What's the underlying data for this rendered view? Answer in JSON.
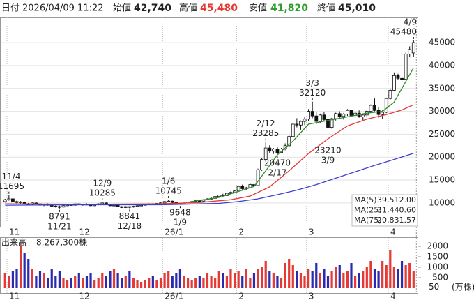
{
  "header": {
    "date_label": "日付",
    "date": "2026/04/09 11:22",
    "open_label": "始値",
    "open": "42,740",
    "high_label": "高値",
    "high": "45,480",
    "high_color": "#e53935",
    "low_label": "安値",
    "low": "41,820",
    "low_color": "#2e9e2e",
    "close_label": "終値",
    "close": "45,010"
  },
  "chart_data": [
    {
      "type": "candlestick",
      "open": [
        10300,
        10700,
        10900,
        10300,
        10100,
        10200,
        9800,
        9700,
        10000,
        9800,
        9500,
        9700,
        9500,
        9300,
        9200,
        9100,
        9400,
        9600,
        9500,
        9800,
        9600,
        9700,
        9600,
        9400,
        9600,
        9800,
        10000,
        9700,
        9400,
        9500,
        9200,
        9000,
        9200,
        9100,
        9300,
        9400,
        9500,
        9700,
        9800,
        9700,
        9900,
        10000,
        10300,
        10400,
        10100,
        9900,
        9800,
        10000,
        10200,
        10300,
        10500,
        10400,
        10700,
        10900,
        11000,
        11400,
        11700,
        11600,
        12100,
        12300,
        12600,
        13600,
        13100,
        13300,
        14000,
        13800,
        17200,
        19500,
        22000,
        21300,
        21800,
        21000,
        21800,
        22500,
        24500,
        27200,
        27000,
        27800,
        28300,
        30000,
        29000,
        27800,
        29200,
        28200,
        26500,
        28400,
        29500,
        28900,
        29400,
        30200,
        29100,
        29600,
        28800,
        29200,
        30000,
        31300,
        30200,
        29300,
        29800,
        32800,
        34600,
        37800,
        37200,
        37000,
        42500,
        42740
      ],
      "high": [
        10900,
        11695,
        11000,
        10500,
        10400,
        10300,
        10000,
        10100,
        10200,
        9900,
        9800,
        9900,
        9600,
        9500,
        9400,
        9500,
        9700,
        9800,
        9900,
        10000,
        9800,
        9900,
        9800,
        9700,
        9900,
        10285,
        10100,
        9800,
        9600,
        9600,
        9300,
        9300,
        9300,
        9400,
        9500,
        9600,
        9800,
        9900,
        10000,
        9900,
        10100,
        10400,
        10745,
        10500,
        10200,
        10000,
        10100,
        10300,
        10400,
        10600,
        10700,
        10800,
        11000,
        11200,
        11500,
        11800,
        12000,
        12200,
        12500,
        12800,
        13800,
        14000,
        13500,
        14200,
        14500,
        17500,
        19800,
        23285,
        22600,
        22000,
        22200,
        22000,
        23000,
        24800,
        27500,
        28500,
        28000,
        28800,
        30500,
        32120,
        29800,
        29500,
        29800,
        28300,
        28600,
        29700,
        30000,
        29600,
        30500,
        30400,
        29800,
        30200,
        29500,
        30300,
        31500,
        32800,
        31000,
        30200,
        33000,
        35000,
        38500,
        38200,
        37600,
        42800,
        44200,
        45480
      ],
      "low": [
        10100,
        10500,
        10200,
        9900,
        9800,
        9700,
        9500,
        9600,
        9700,
        9400,
        9300,
        9400,
        9100,
        9000,
        8791,
        9000,
        9300,
        9400,
        9400,
        9500,
        9400,
        9500,
        9300,
        9300,
        9500,
        9700,
        9600,
        9300,
        9200,
        9100,
        8900,
        8900,
        8841,
        9000,
        9200,
        9300,
        9400,
        9600,
        9600,
        9600,
        9800,
        9900,
        10200,
        10000,
        9800,
        9648,
        9700,
        9900,
        10000,
        10200,
        10300,
        10300,
        10600,
        10700,
        10900,
        11300,
        11500,
        11500,
        11900,
        12100,
        12500,
        12900,
        12800,
        13200,
        13600,
        13700,
        17000,
        19000,
        20800,
        20700,
        20470,
        20800,
        21500,
        22300,
        24300,
        26500,
        26000,
        27000,
        27800,
        28500,
        27200,
        27500,
        27800,
        23210,
        26200,
        28000,
        28600,
        28200,
        29000,
        28800,
        28500,
        28600,
        27800,
        28700,
        29700,
        30000,
        28600,
        28400,
        29600,
        32500,
        34400,
        36800,
        36300,
        36800,
        41800,
        41820
      ],
      "close": [
        10700,
        10900,
        10300,
        10100,
        10200,
        9800,
        9700,
        10000,
        9800,
        9500,
        9700,
        9500,
        9300,
        9200,
        9100,
        9400,
        9600,
        9500,
        9800,
        9600,
        9700,
        9600,
        9400,
        9600,
        9800,
        10000,
        9700,
        9400,
        9500,
        9200,
        9000,
        9200,
        9100,
        9300,
        9400,
        9500,
        9700,
        9800,
        9700,
        9900,
        10000,
        10300,
        10400,
        10100,
        9900,
        9800,
        10000,
        10200,
        10300,
        10500,
        10400,
        10700,
        10900,
        11000,
        11400,
        11700,
        11600,
        12100,
        12300,
        12600,
        13600,
        13100,
        13300,
        14000,
        13800,
        17200,
        19500,
        22000,
        21300,
        21800,
        21000,
        21800,
        22500,
        24500,
        27200,
        27000,
        27800,
        28300,
        30000,
        29000,
        27800,
        29200,
        28200,
        26500,
        28400,
        29500,
        28900,
        29400,
        30200,
        29100,
        29600,
        28800,
        29200,
        30000,
        31300,
        30200,
        29300,
        29800,
        32800,
        34600,
        37800,
        37200,
        37000,
        42500,
        43500,
        45010
      ],
      "up_color": "#ffffff",
      "down_color": "#111111",
      "xlim": [
        -1.3,
        106.2
      ],
      "xticks": [
        {
          "value": 0.5,
          "label": "11"
        },
        {
          "value": 18.5,
          "label": "12"
        },
        {
          "value": 40.5,
          "label": "26/1"
        },
        {
          "value": 59.5,
          "label": "2"
        },
        {
          "value": 77.5,
          "label": "3"
        },
        {
          "value": 98.5,
          "label": "4"
        }
      ],
      "ylim": [
        4800,
        50500
      ],
      "yticks": [
        10000,
        15000,
        20000,
        25000,
        30000,
        35000,
        40000,
        45000
      ],
      "grid": true,
      "legend": "bottom-right",
      "lines": [
        {
          "name": "MA(5)",
          "color": "#2e8b2e",
          "x": [
            48,
            55,
            60,
            64,
            67,
            70,
            74,
            78,
            83,
            88,
            93,
            97,
            100,
            103,
            105
          ],
          "values": [
            10300,
            11200,
            12500,
            13600,
            17000,
            20500,
            23500,
            27200,
            28000,
            28800,
            29600,
            30000,
            32000,
            36500,
            39512
          ],
          "legend_value_label": "39,512.00"
        },
        {
          "name": "MA(25)",
          "color": "#e53935",
          "x": [
            0,
            20,
            40,
            50,
            58,
            63,
            68,
            73,
            78,
            83,
            88,
            93,
            98,
            102,
            105
          ],
          "values": [
            9800,
            9700,
            9800,
            10100,
            10700,
            11500,
            13500,
            17000,
            20800,
            24000,
            26800,
            28300,
            29300,
            30300,
            31440.6
          ],
          "legend_value_label": "31,440.60"
        },
        {
          "name": "MA(75)",
          "color": "#3f3fd0",
          "x": [
            0,
            20,
            40,
            55,
            60,
            65,
            70,
            75,
            80,
            85,
            90,
            95,
            100,
            105
          ],
          "values": [
            9500,
            9600,
            9600,
            9900,
            10300,
            10900,
            11800,
            12800,
            14000,
            15400,
            16800,
            18200,
            19500,
            20831.57
          ],
          "legend_value_label": "20,831.57"
        }
      ],
      "annotations_high": [
        {
          "x": 1,
          "date": "11/4",
          "value": 11695
        },
        {
          "x": 25,
          "date": "12/9",
          "value": 10285
        },
        {
          "x": 42,
          "date": "1/6",
          "value": 10745
        },
        {
          "x": 67,
          "date": "2/12",
          "value": 23285
        },
        {
          "x": 79,
          "date": "3/3",
          "value": 32120
        },
        {
          "x": 105,
          "date": "4/9",
          "value": 45480
        }
      ],
      "annotations_low": [
        {
          "x": 14,
          "date": "11/21",
          "value": 8791
        },
        {
          "x": 32,
          "date": "12/18",
          "value": 8841
        },
        {
          "x": 45,
          "date": "1/9",
          "value": 9648
        },
        {
          "x": 70,
          "date": "2/17",
          "value": 20470
        },
        {
          "x": 83,
          "date": "3/9",
          "value": 23210
        }
      ]
    },
    {
      "type": "bar",
      "title": "出来高",
      "subtitle": "8,267,300株",
      "values": [
        700,
        600,
        800,
        900,
        2000,
        1700,
        1400,
        900,
        600,
        800,
        700,
        500,
        900,
        600,
        800,
        500,
        400,
        500,
        600,
        700,
        500,
        600,
        700,
        400,
        500,
        700,
        600,
        800,
        900,
        700,
        500,
        600,
        800,
        500,
        400,
        300,
        400,
        500,
        600,
        400,
        500,
        700,
        800,
        600,
        700,
        900,
        600,
        500,
        400,
        500,
        600,
        500,
        700,
        600,
        500,
        800,
        700,
        600,
        900,
        700,
        800,
        600,
        900,
        500,
        700,
        900,
        1000,
        1300,
        800,
        700,
        600,
        500,
        1200,
        1400,
        1100,
        800,
        700,
        600,
        900,
        800,
        1200,
        700,
        900,
        600,
        800,
        1000,
        1100,
        700,
        800,
        1200,
        600,
        700,
        800,
        1000,
        1300,
        900,
        800,
        1300,
        1100,
        1800,
        1000,
        900,
        1300,
        1100,
        1200,
        826.73
      ],
      "up_color": "#e53935",
      "down_color": "#2b2bb0",
      "xlim": [
        -1.3,
        106.2
      ],
      "xticks": [
        {
          "value": 0.5,
          "label": "11"
        },
        {
          "value": 18.5,
          "label": "12"
        },
        {
          "value": 40.5,
          "label": "26/1"
        },
        {
          "value": 59.5,
          "label": "2"
        },
        {
          "value": 77.5,
          "label": "3"
        },
        {
          "value": 98.5,
          "label": "4"
        }
      ],
      "ylim": [
        0,
        2400
      ],
      "yticks": [
        500,
        1000,
        1500,
        2000
      ],
      "ref_value": 50,
      "ref_color": "#e53935",
      "unit": "(万株)"
    }
  ]
}
